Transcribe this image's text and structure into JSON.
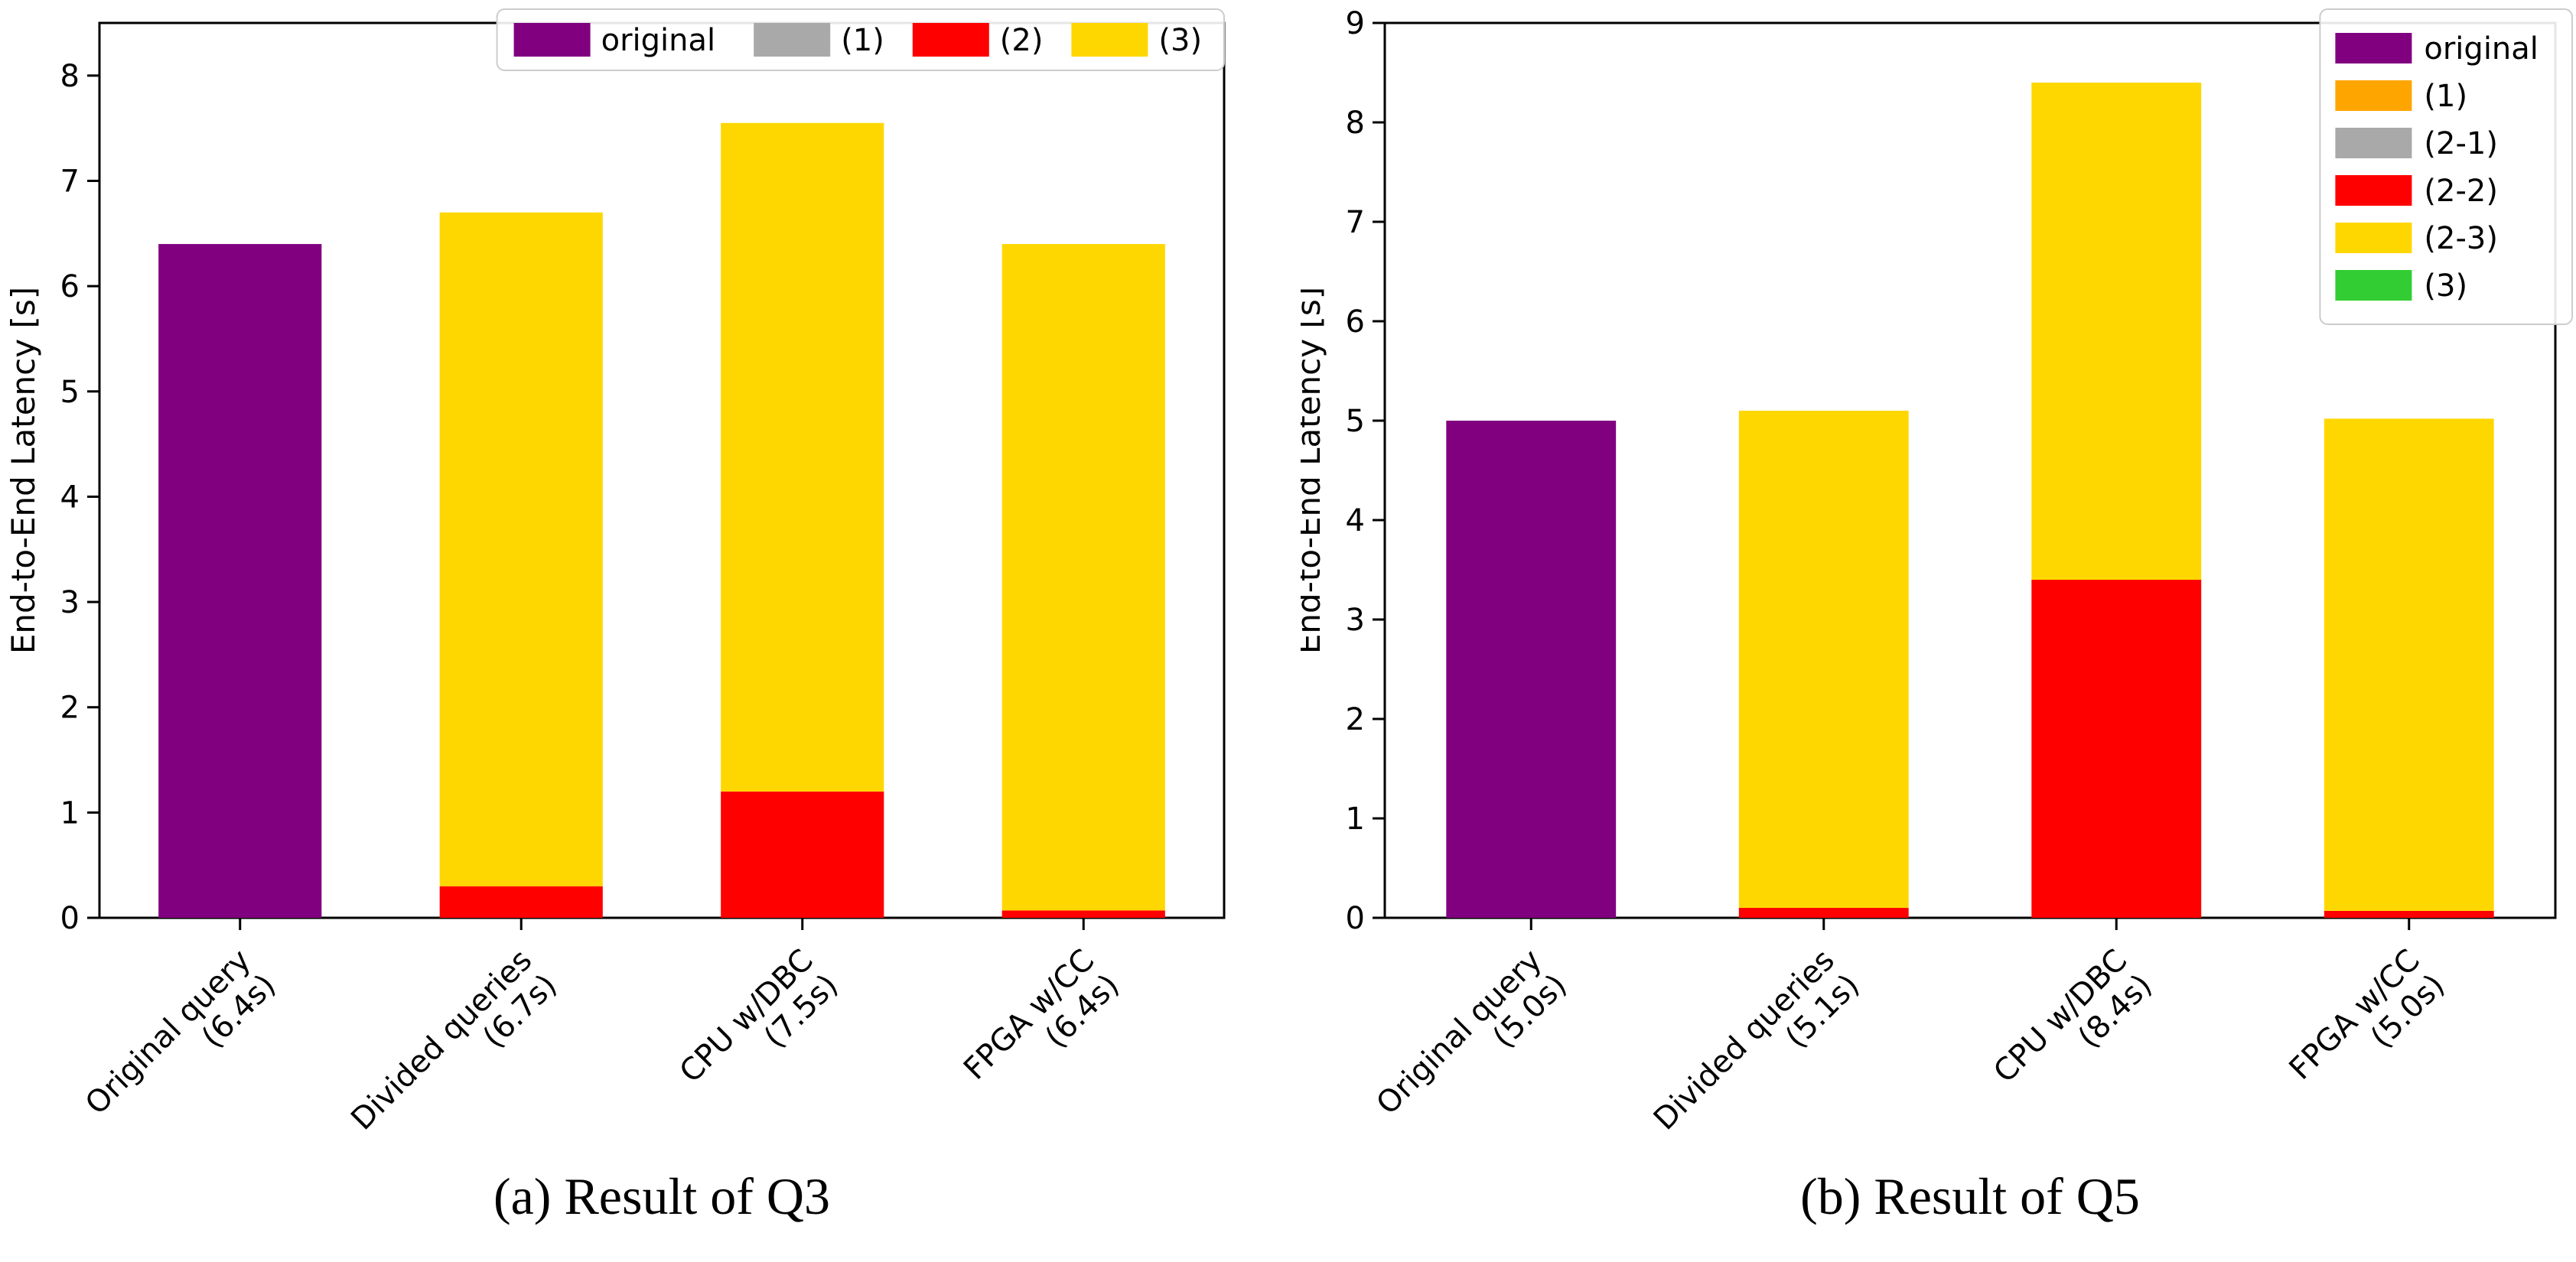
{
  "figure": {
    "background": "#FFFFFF",
    "text_color": "#000000",
    "axis_color": "#000000",
    "legend_border_color": "#CCCCCC",
    "legend_background": "#FFFFFF"
  },
  "chart_data": [
    {
      "type": "bar",
      "stacked": true,
      "caption": "(a) Result of Q3",
      "ylabel": "End-to-End Latency [s]",
      "ylim": [
        0,
        8.5
      ],
      "yticks": [
        "0",
        "1",
        "2",
        "3",
        "4",
        "5",
        "6",
        "7",
        "8"
      ],
      "grid": false,
      "legend_position": "upper right",
      "legend_orientation": "horizontal",
      "categories": [
        {
          "lines": [
            "Original query",
            "(6.4s)"
          ],
          "total_label": "6.4s"
        },
        {
          "lines": [
            "Divided queries",
            "(6.7s)"
          ],
          "total_label": "6.7s"
        },
        {
          "lines": [
            "CPU w/DBC",
            "(7.5s)"
          ],
          "total_label": "7.5s"
        },
        {
          "lines": [
            "FPGA w/CC",
            "(6.4s)"
          ],
          "total_label": "6.4s"
        }
      ],
      "series": [
        {
          "name": "original",
          "color": "#800080",
          "values": [
            6.4,
            0,
            0,
            0
          ]
        },
        {
          "name": "(1)",
          "color": "#A9A9A9",
          "values": [
            0,
            0,
            0,
            0
          ]
        },
        {
          "name": "(2)",
          "color": "#FF0000",
          "values": [
            0,
            0.3,
            1.2,
            0.07
          ]
        },
        {
          "name": "(3)",
          "color": "#FFD700",
          "values": [
            0,
            6.4,
            6.35,
            6.33
          ]
        }
      ],
      "legend": [
        {
          "label": "original",
          "color": "#800080"
        },
        {
          "label": "(1)",
          "color": "#A9A9A9"
        },
        {
          "label": "(2)",
          "color": "#FF0000"
        },
        {
          "label": "(3)",
          "color": "#FFD700"
        }
      ]
    },
    {
      "type": "bar",
      "stacked": true,
      "caption": "(b) Result of Q5",
      "ylabel": "End-to-End Latency [s]",
      "ylim": [
        0,
        9
      ],
      "yticks": [
        "0",
        "1",
        "2",
        "3",
        "4",
        "5",
        "6",
        "7",
        "8",
        "9"
      ],
      "grid": false,
      "legend_position": "upper right",
      "legend_orientation": "vertical",
      "categories": [
        {
          "lines": [
            "Original query",
            "(5.0s)"
          ],
          "total_label": "5.0s"
        },
        {
          "lines": [
            "Divided queries",
            "(5.1s)"
          ],
          "total_label": "5.1s"
        },
        {
          "lines": [
            "CPU w/DBC",
            "(8.4s)"
          ],
          "total_label": "8.4s"
        },
        {
          "lines": [
            "FPGA w/CC",
            "(5.0s)"
          ],
          "total_label": "5.0s"
        }
      ],
      "series": [
        {
          "name": "original",
          "color": "#800080",
          "values": [
            5.0,
            0,
            0,
            0
          ]
        },
        {
          "name": "(1)",
          "color": "#FFA500",
          "values": [
            0,
            0,
            0,
            0
          ]
        },
        {
          "name": "(2-1)",
          "color": "#A9A9A9",
          "values": [
            0,
            0,
            0,
            0
          ]
        },
        {
          "name": "(2-2)",
          "color": "#FF0000",
          "values": [
            0,
            0.1,
            3.4,
            0.07
          ]
        },
        {
          "name": "(2-3)",
          "color": "#FFD700",
          "values": [
            0,
            5.0,
            5.0,
            4.95
          ]
        },
        {
          "name": "(3)",
          "color": "#32CD32",
          "values": [
            0,
            0,
            0,
            0
          ]
        }
      ],
      "legend": [
        {
          "label": "original",
          "color": "#800080"
        },
        {
          "label": "(1)",
          "color": "#FFA500"
        },
        {
          "label": "(2-1)",
          "color": "#A9A9A9"
        },
        {
          "label": "(2-2)",
          "color": "#FF0000"
        },
        {
          "label": "(2-3)",
          "color": "#FFD700"
        },
        {
          "label": "(3)",
          "color": "#32CD32"
        }
      ]
    }
  ]
}
